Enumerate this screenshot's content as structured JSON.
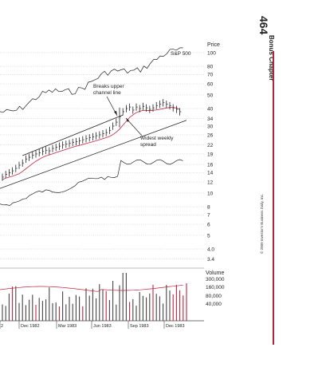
{
  "page": {
    "number": "464",
    "chapter": "Bonus Chapter",
    "copyright": "© 2009 Investor's Business Daily, Inc."
  },
  "colors": {
    "price_bar": "#222222",
    "moving_average": "#c0243f",
    "channel": "#222222",
    "volume_bar": "#444444",
    "volume_bar_red": "#c0243f",
    "grid": "#9e9e9e",
    "accent_bar": "#b1243e"
  },
  "chart_data": {
    "type": "line",
    "price_axis": {
      "label": "Price",
      "ticks": [
        "100",
        "80",
        "70",
        "60",
        "50",
        "40",
        "34",
        "30",
        "26",
        "22",
        "19",
        "16",
        "14",
        "12",
        "10",
        "8",
        "7",
        "6",
        "5",
        "4.0",
        "3.4"
      ]
    },
    "volume_axis": {
      "label": "Volume",
      "ticks": [
        "300,000",
        "160,000",
        "80,000",
        "40,000"
      ]
    },
    "x_axis": {
      "tick_labels": [
        "2",
        "Dec 1982",
        "Mar 1983",
        "Jun 1983",
        "Sep 1983",
        "Dec 1983"
      ]
    },
    "index_line_label": "S&P 500",
    "annotations": [
      {
        "text": "Breaks upper\nchannel line"
      },
      {
        "text": "Widest weekly\nspread"
      }
    ],
    "weekly_close": [
      {
        "week": 0,
        "close": 13.0
      },
      {
        "week": 1,
        "close": 13.6
      },
      {
        "week": 2,
        "close": 14.0
      },
      {
        "week": 3,
        "close": 14.4
      },
      {
        "week": 4,
        "close": 15.0
      },
      {
        "week": 5,
        "close": 15.8
      },
      {
        "week": 6,
        "close": 16.4
      },
      {
        "week": 7,
        "close": 17.5
      },
      {
        "week": 8,
        "close": 18.0
      },
      {
        "week": 9,
        "close": 18.6
      },
      {
        "week": 10,
        "close": 19.0
      },
      {
        "week": 11,
        "close": 19.4
      },
      {
        "week": 12,
        "close": 19.8
      },
      {
        "week": 13,
        "close": 20.2
      },
      {
        "week": 14,
        "close": 20.0
      },
      {
        "week": 15,
        "close": 20.8
      },
      {
        "week": 16,
        "close": 21.2
      },
      {
        "week": 17,
        "close": 21.6
      },
      {
        "week": 18,
        "close": 22.0
      },
      {
        "week": 19,
        "close": 22.3
      },
      {
        "week": 20,
        "close": 22.6
      },
      {
        "week": 21,
        "close": 23.0
      },
      {
        "week": 22,
        "close": 23.3
      },
      {
        "week": 23,
        "close": 23.5
      },
      {
        "week": 24,
        "close": 24.0
      },
      {
        "week": 25,
        "close": 24.4
      },
      {
        "week": 26,
        "close": 24.8
      },
      {
        "week": 27,
        "close": 25.2
      },
      {
        "week": 28,
        "close": 25.6
      },
      {
        "week": 29,
        "close": 26.0
      },
      {
        "week": 30,
        "close": 26.5
      },
      {
        "week": 31,
        "close": 27.0
      },
      {
        "week": 32,
        "close": 28.0
      },
      {
        "week": 33,
        "close": 30.0
      },
      {
        "week": 34,
        "close": 32.0
      },
      {
        "week": 35,
        "close": 35.0
      },
      {
        "week": 36,
        "close": 38.0
      },
      {
        "week": 37,
        "close": 40.0
      },
      {
        "week": 38,
        "close": 41.0
      },
      {
        "week": 39,
        "close": 39.0
      },
      {
        "week": 40,
        "close": 41.0
      },
      {
        "week": 41,
        "close": 40.0
      },
      {
        "week": 42,
        "close": 41.5
      },
      {
        "week": 43,
        "close": 40.5
      },
      {
        "week": 44,
        "close": 39.5
      },
      {
        "week": 45,
        "close": 40.5
      },
      {
        "week": 46,
        "close": 42.0
      },
      {
        "week": 47,
        "close": 43.0
      },
      {
        "week": 48,
        "close": 44.0
      },
      {
        "week": 49,
        "close": 43.0
      },
      {
        "week": 50,
        "close": 42.0
      },
      {
        "week": 51,
        "close": 40.5
      },
      {
        "week": 52,
        "close": 39.5
      },
      {
        "week": 53,
        "close": 38.0
      }
    ]
  }
}
